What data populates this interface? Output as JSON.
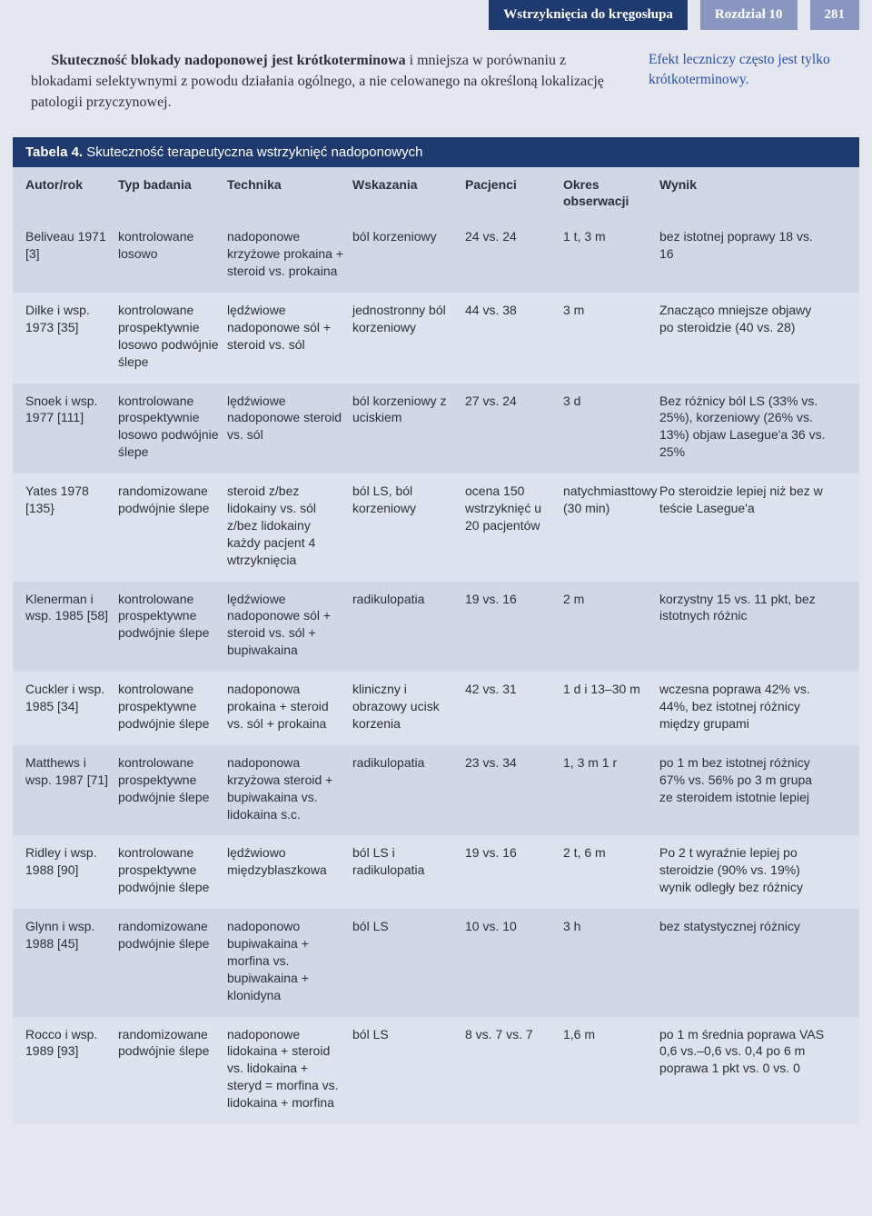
{
  "header": {
    "breadcrumb": "Wstrzyknięcia do kręgosłupa",
    "chapter": "Rozdział 10",
    "pagenum": "281"
  },
  "intro": {
    "bold": "Skuteczność blokady nadoponowej jest krótkoterminowa",
    "rest": " i mniejsza w porównaniu z blokadami selektywnymi z powodu działania ogólnego, a nie celowanego na określoną lokalizację patologii przyczynowej.",
    "sidenote": "Efekt leczniczy często jest tylko krótkoterminowy."
  },
  "table": {
    "title_label": "Tabela 4.",
    "title_rest": "Skuteczność terapeutyczna wstrzyknięć nadoponowych",
    "columns": [
      "Autor/rok",
      "Typ badania",
      "Technika",
      "Wskazania",
      "Pacjenci",
      "Okres obserwacji",
      "Wynik"
    ],
    "rows": [
      {
        "c": [
          "Beliveau 1971 [3]",
          "kontrolowane losowo",
          "nadoponowe krzyżowe prokaina + steroid vs. prokaina",
          "ból korzeniowy",
          "24 vs. 24",
          "1 t, 3 m",
          "bez istotnej poprawy 18 vs. 16"
        ]
      },
      {
        "c": [
          "Dilke i wsp. 1973 [35]",
          "kontrolowane prospektywnie losowo podwójnie ślepe",
          "lędźwiowe nadoponowe sól + steroid vs. sól",
          "jednostronny ból korzeniowy",
          "44 vs. 38",
          "3 m",
          "Znacząco mniejsze objawy po steroidzie (40 vs. 28)"
        ]
      },
      {
        "c": [
          "Snoek i wsp. 1977 [111]",
          "kontrolowane prospektywnie losowo podwójnie ślepe",
          "lędźwiowe nadoponowe steroid vs. sól",
          "ból korzeniowy z uciskiem",
          "27 vs. 24",
          "3 d",
          "Bez różnicy ból LS (33% vs. 25%), korzeniowy (26% vs. 13%) objaw Lasegue'a 36 vs. 25%"
        ]
      },
      {
        "c": [
          "Yates 1978 [135}",
          "randomizowane podwójnie ślepe",
          "steroid z/bez lidokainy vs. sól z/bez lidokainy każdy pacjent 4 wtrzyknięcia",
          "ból LS, ból korzeniowy",
          "ocena 150 wstrzyknięć u 20 pacjentów",
          "natychmiasttowy (30 min)",
          "Po steroidzie lepiej niż bez w teście Lasegue'a"
        ]
      },
      {
        "c": [
          "Klenerman i wsp. 1985 [58]",
          "kontrolowane prospektywne podwójnie ślepe",
          "lędźwiowe nadoponowe sól + steroid vs. sól + bupiwakaina",
          "radikulopatia",
          "19 vs. 16",
          "2 m",
          "korzystny 15 vs. 11 pkt, bez istotnych różnic"
        ]
      },
      {
        "c": [
          "Cuckler i wsp. 1985 [34]",
          "kontrolowane prospektywne podwójnie ślepe",
          "nadoponowa prokaina + steroid vs. sól + prokaina",
          "kliniczny i obrazowy ucisk korzenia",
          "42 vs. 31",
          "1 d i 13–30 m",
          "wczesna poprawa 42% vs. 44%, bez istotnej różnicy między grupami"
        ]
      },
      {
        "c": [
          "Matthews i wsp. 1987 [71]",
          "kontrolowane prospektywne podwójnie ślepe",
          "nadoponowa krzyżowa steroid + bupiwakaina vs. lidokaina s.c.",
          "radikulopatia",
          "23 vs. 34",
          "1, 3 m 1 r",
          "po 1 m bez istotnej różnicy 67% vs. 56% po 3 m grupa ze steroidem istotnie lepiej"
        ]
      },
      {
        "c": [
          "Ridley i wsp. 1988 [90]",
          "kontrolowane prospektywne podwójnie ślepe",
          "lędźwiowo międzyblaszkowa",
          "ból LS i radikulopatia",
          "19 vs. 16",
          "2 t, 6 m",
          "Po 2 t wyraźnie lepiej po steroidzie (90% vs. 19%) wynik odległy bez różnicy"
        ]
      },
      {
        "c": [
          "Glynn i wsp. 1988 [45]",
          "randomizowane podwójnie ślepe",
          "nadoponowo bupiwakaina + morfina vs. bupiwakaina + klonidyna",
          "ból LS",
          "10 vs. 10",
          "3 h",
          "bez statystycznej różnicy"
        ]
      },
      {
        "c": [
          "Rocco i wsp. 1989 [93]",
          "randomizowane podwójnie ślepe",
          "nadoponowe lidokaina + steroid vs. lidokaina + steryd = morfina vs. lidokaina + morfina",
          "ból LS",
          "8 vs. 7 vs. 7",
          "1,6 m",
          "po 1 m średnia poprawa VAS 0,6 vs.–0,6 vs. 0,4 po 6 m poprawa 1 pkt vs. 0 vs. 0"
        ]
      }
    ]
  }
}
